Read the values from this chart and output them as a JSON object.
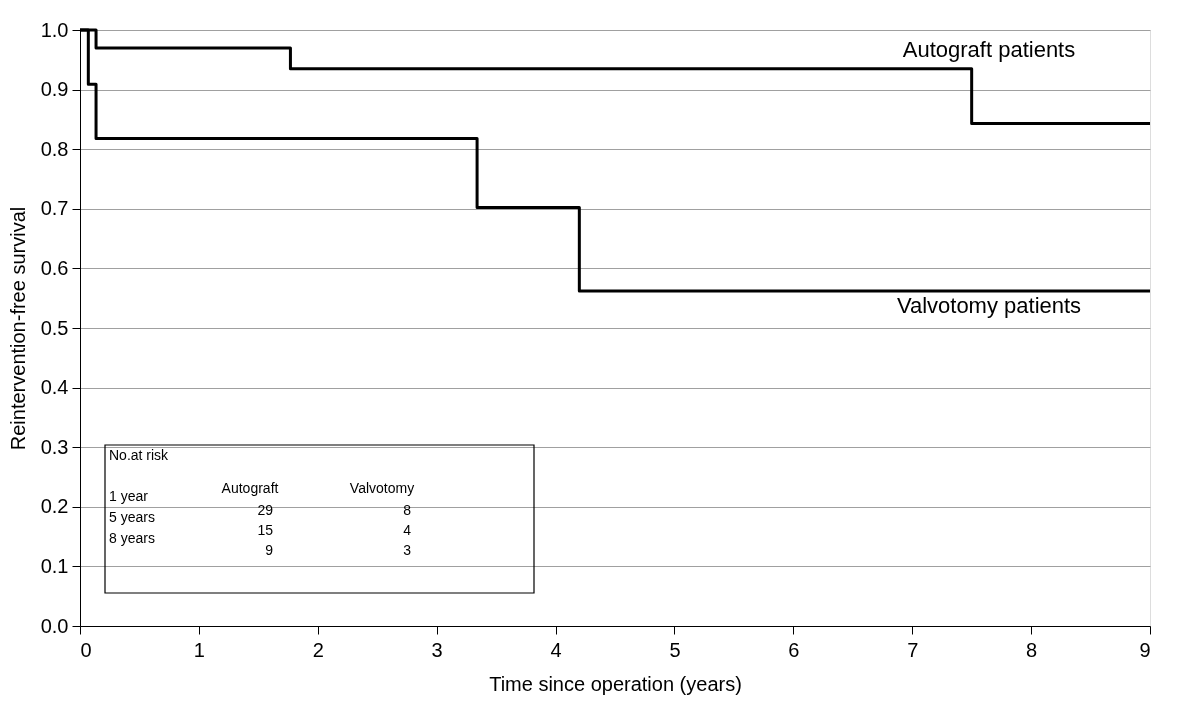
{
  "chart_data": {
    "type": "step",
    "xlabel": "Time since operation (years)",
    "ylabel": "Reintervention-free survival",
    "xlim": [
      0,
      9
    ],
    "xticks": [
      0,
      1,
      2,
      3,
      4,
      5,
      6,
      7,
      8,
      9
    ],
    "ylim": [
      0,
      1
    ],
    "yticks": [
      {
        "value": 0,
        "label": "0.0"
      },
      {
        "value": 0.1,
        "label": "0.1"
      },
      {
        "value": 0.2,
        "label": "0.2"
      },
      {
        "value": 0.3,
        "label": "0.3"
      },
      {
        "value": 0.4,
        "label": "0.4"
      },
      {
        "value": 0.5,
        "label": "0.5"
      },
      {
        "value": 0.6,
        "label": "0.6"
      },
      {
        "value": 0.7,
        "label": "0.7"
      },
      {
        "value": 0.8,
        "label": "0.8"
      },
      {
        "value": 0.9,
        "label": "0.9"
      },
      {
        "value": 1,
        "label": "1.0"
      }
    ],
    "grid": "y",
    "legend": false,
    "series": [
      {
        "name": "Autograft patients",
        "color": "#000000",
        "x": [
          0,
          0.135,
          1.77,
          7.5,
          9
        ],
        "values": [
          1.0,
          0.97,
          0.935,
          0.843,
          0.843
        ]
      },
      {
        "name": "Valvotomy patients",
        "color": "#000000",
        "x": [
          0,
          0.07,
          0.135,
          3.34,
          4.2,
          9
        ],
        "values": [
          1.0,
          0.909,
          0.818,
          0.702,
          0.562,
          0.562
        ]
      }
    ],
    "annotations": [
      "No.at risk",
      "1 year",
      "5 years",
      "8 years",
      "Autograft",
      "Valvotomy",
      "29",
      "15",
      "9",
      "8",
      "4",
      "3"
    ]
  }
}
